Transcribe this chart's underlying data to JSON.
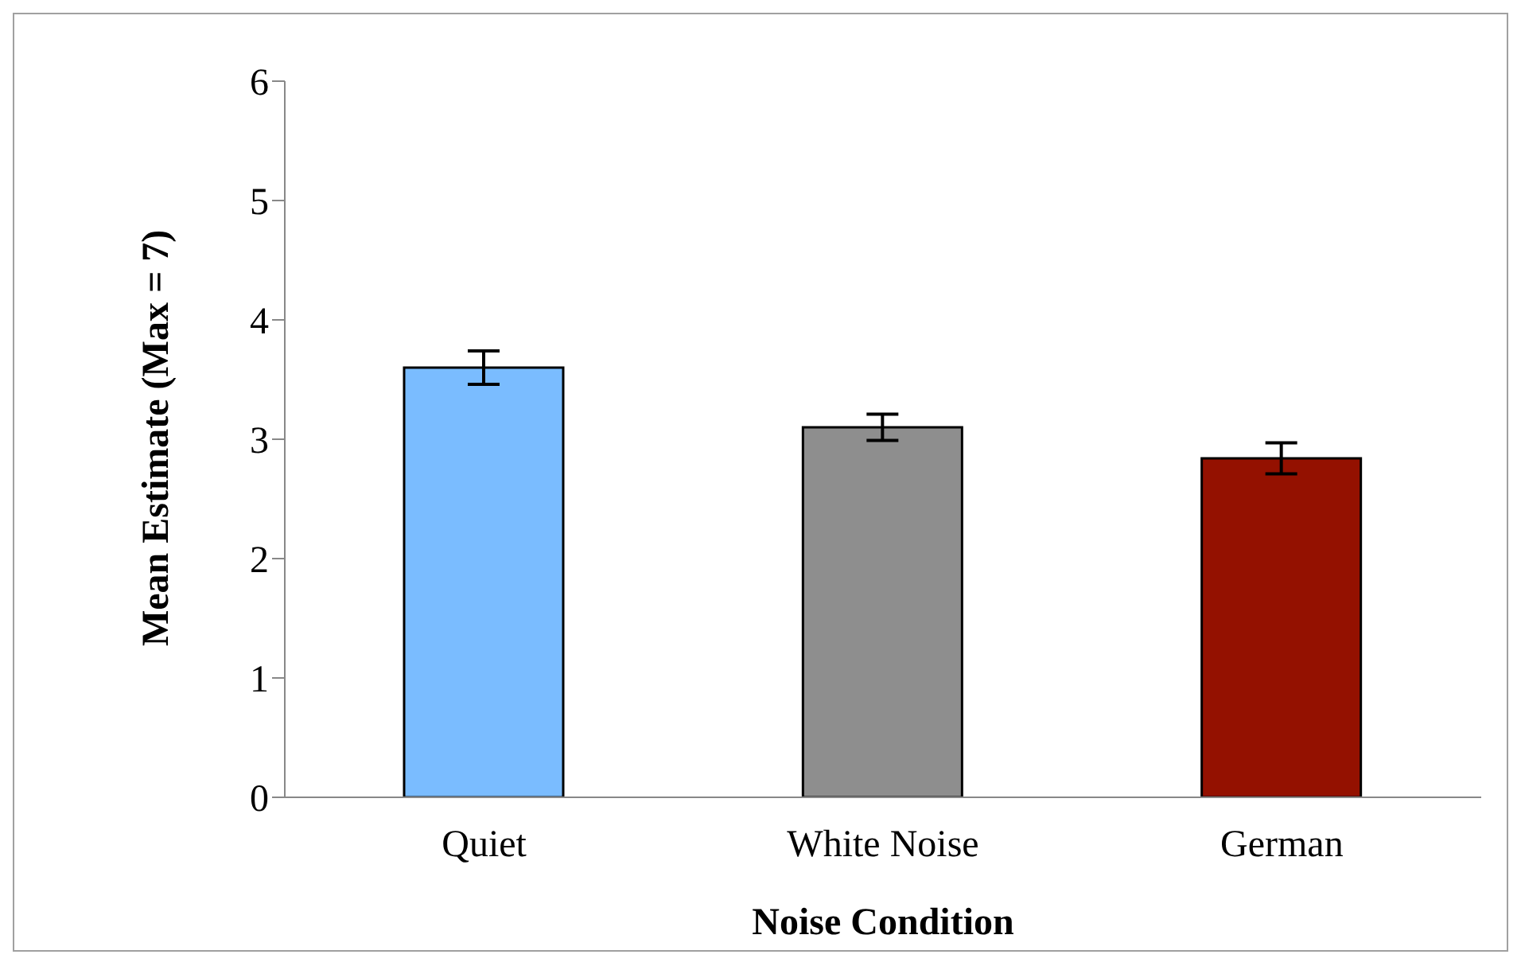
{
  "chart_data": {
    "type": "bar",
    "xlabel": "Noise Condition",
    "ylabel": "Mean Estimate (Max = 7)",
    "categories": [
      "Quiet",
      "White Noise",
      "German"
    ],
    "values": [
      3.6,
      3.1,
      2.84
    ],
    "errors": [
      0.14,
      0.11,
      0.13
    ],
    "colors": [
      "#7abcff",
      "#8e8e8e",
      "#941100"
    ],
    "ylim": [
      0,
      6
    ],
    "yticks": [
      0,
      1,
      2,
      3,
      4,
      5,
      6
    ],
    "grid": false,
    "legend": false
  }
}
